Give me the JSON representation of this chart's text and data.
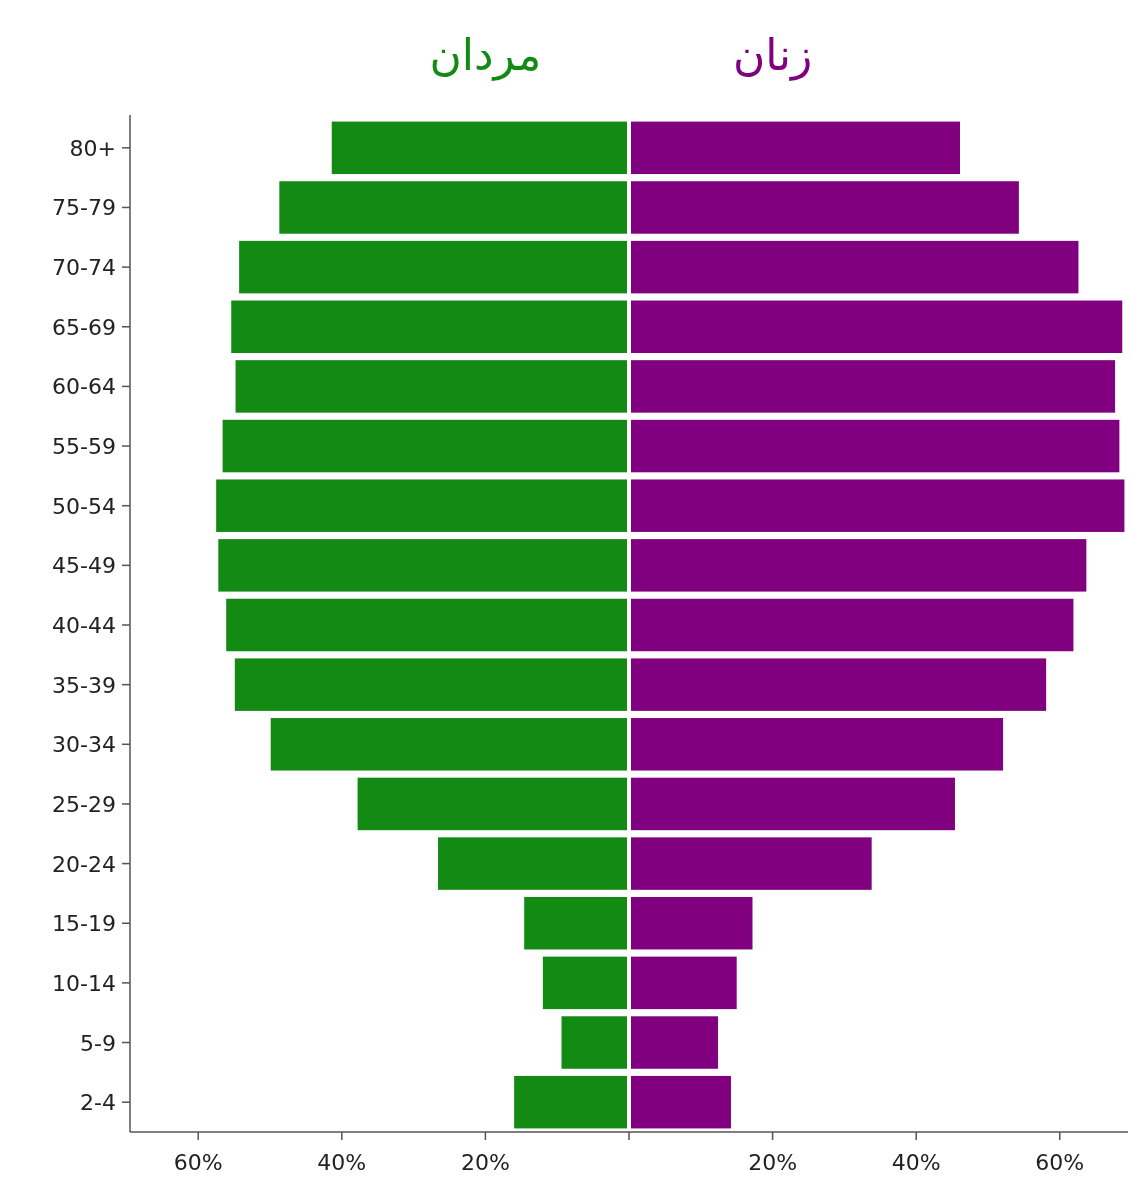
{
  "chart_data": {
    "type": "bar",
    "orientation": "horizontal",
    "stacked": true,
    "categories": [
      "80+",
      "75-79",
      "70-74",
      "65-69",
      "60-64",
      "55-59",
      "50-54",
      "45-49",
      "40-44",
      "35-39",
      "30-34",
      "25-29",
      "20-24",
      "15-19",
      "10-14",
      "5-9",
      "2-4"
    ],
    "series": [
      {
        "name": "مردان",
        "color": "#138a13",
        "values": [
          -41.4,
          -48.7,
          -54.3,
          -55.4,
          -54.8,
          -56.6,
          -57.5,
          -57.2,
          -56.1,
          -54.9,
          -49.9,
          -37.8,
          -26.6,
          -14.6,
          -12.0,
          -9.4,
          -16.0
        ]
      },
      {
        "name": "زنان",
        "color": "#800080",
        "values": [
          46.1,
          54.3,
          62.6,
          68.7,
          67.7,
          68.3,
          69.0,
          63.7,
          61.9,
          58.1,
          52.1,
          45.4,
          33.8,
          17.2,
          15.0,
          12.4,
          14.2
        ]
      }
    ],
    "xlim": [
      -69.5,
      69.5
    ],
    "xticks": [
      {
        "value": -60,
        "label": "60%"
      },
      {
        "value": -40,
        "label": "40%"
      },
      {
        "value": -20,
        "label": "20%"
      },
      {
        "value": 0,
        "label": null
      },
      {
        "value": 20,
        "label": "20%"
      },
      {
        "value": 40,
        "label": "40%"
      },
      {
        "value": 60,
        "label": "60%"
      }
    ],
    "legend": "top"
  }
}
